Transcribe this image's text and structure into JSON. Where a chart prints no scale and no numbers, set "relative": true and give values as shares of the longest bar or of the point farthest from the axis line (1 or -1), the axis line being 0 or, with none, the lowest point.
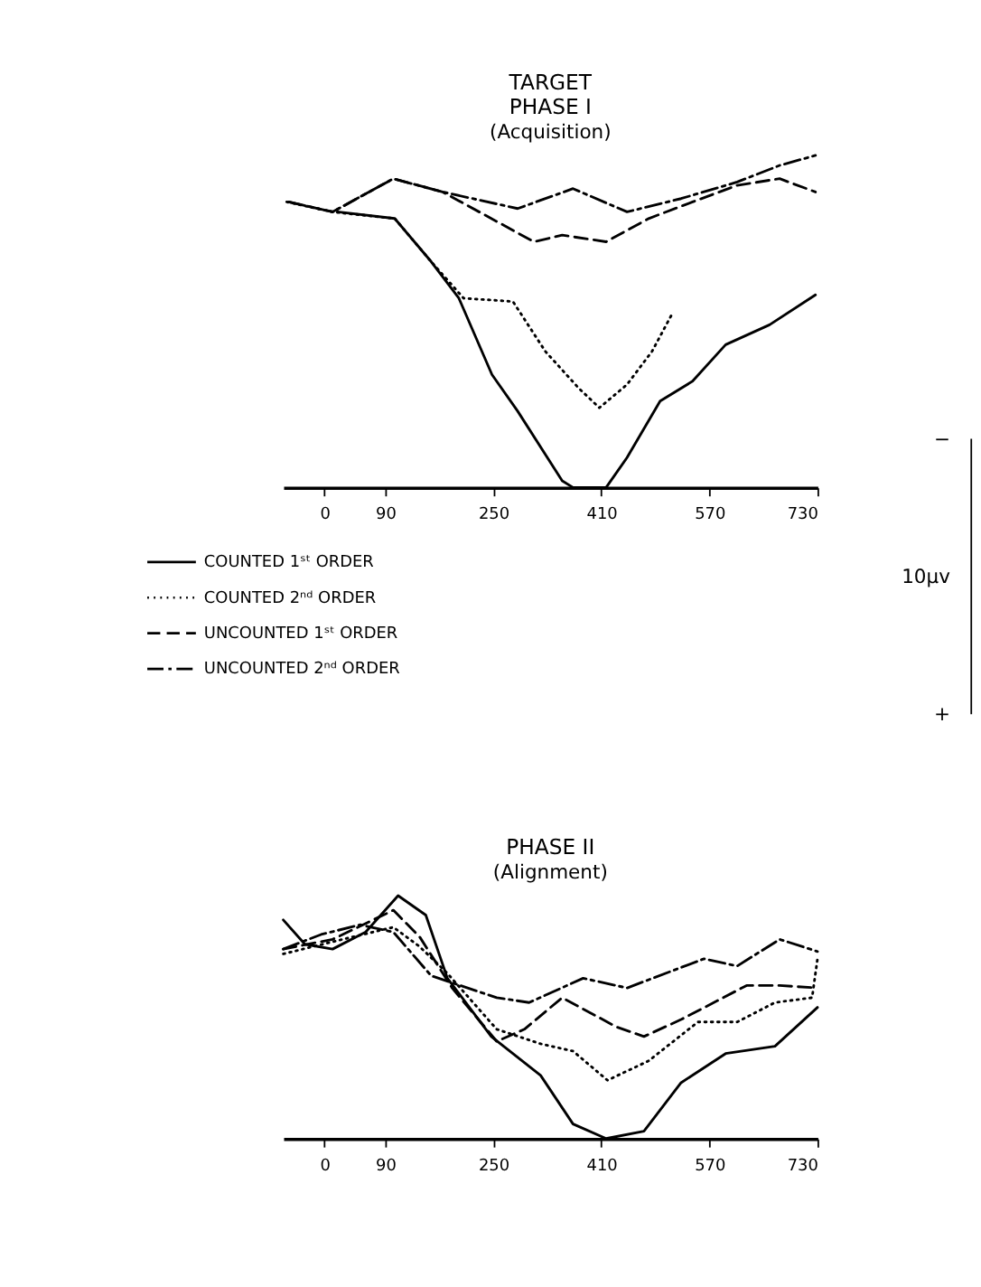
{
  "chart_data": [
    {
      "type": "line",
      "title": "TARGET\nPHASE I",
      "subtitle": "(Acquisition)",
      "relative": true,
      "legend": "bottom left",
      "grid": false,
      "xlim": [
        -61,
        730
      ],
      "xticks": [
        0,
        90,
        250,
        410,
        570,
        730
      ],
      "annotations": [
        "−",
        "10µv",
        "+"
      ],
      "series": [
        {
          "name": "COUNTED 1ˢᵗ ORDER",
          "color": "#000000",
          "line_style": "solid",
          "x": [
            19,
            104,
            158,
            199,
            248,
            286,
            352,
            368,
            417,
            448,
            497,
            545,
            594,
            659,
            727
          ],
          "values": [
            0.83,
            0.81,
            0.68,
            0.57,
            0.34,
            0.23,
            0.02,
            0,
            0,
            0.09,
            0.26,
            0.32,
            0.43,
            0.49,
            0.58
          ]
        },
        {
          "name": "COUNTED 2ⁿᵈ ORDER",
          "color": "#000000",
          "line_style": "dotted",
          "x": [
            -56,
            12,
            104,
            158,
            206,
            279,
            327,
            376,
            407,
            448,
            485,
            514
          ],
          "values": [
            0.86,
            0.83,
            0.81,
            0.68,
            0.57,
            0.56,
            0.41,
            0.3,
            0.24,
            0.31,
            0.41,
            0.52
          ]
        },
        {
          "name": "UNCOUNTED 1ˢᵗ ORDER",
          "color": "#000000",
          "line_style": "dashed",
          "x": [
            -53,
            12,
            102,
            175,
            238,
            310,
            352,
            417,
            480,
            545,
            611,
            674,
            727
          ],
          "values": [
            0.86,
            0.83,
            0.93,
            0.89,
            0.82,
            0.74,
            0.76,
            0.74,
            0.81,
            0.86,
            0.91,
            0.93,
            0.89
          ]
        },
        {
          "name": "UNCOUNTED 2ⁿᵈ ORDER",
          "color": "#000000",
          "line_style": "dashdot",
          "x": [
            -53,
            12,
            102,
            175,
            286,
            368,
            448,
            528,
            611,
            674,
            727
          ],
          "values": [
            0.86,
            0.83,
            0.93,
            0.89,
            0.84,
            0.9,
            0.83,
            0.87,
            0.92,
            0.97,
            1
          ]
        }
      ]
    },
    {
      "type": "line",
      "title": "PHASE II",
      "subtitle": "(Alignment)",
      "relative": true,
      "grid": false,
      "xlim": [
        -61,
        730
      ],
      "xticks": [
        0,
        90,
        250,
        410,
        570,
        730
      ],
      "series": [
        {
          "color": "#000000",
          "line_style": "solid",
          "x": [
            -61,
            -29,
            12,
            61,
            109,
            150,
            182,
            247,
            320,
            368,
            417,
            473,
            528,
            594,
            667,
            730
          ],
          "values": [
            0.9,
            0.8,
            0.78,
            0.85,
            1,
            0.92,
            0.66,
            0.42,
            0.26,
            0.06,
            0,
            0.03,
            0.23,
            0.35,
            0.38,
            0.54
          ]
        },
        {
          "color": "#000000",
          "line_style": "dotted",
          "x": [
            -61,
            12,
            102,
            141,
            182,
            255,
            320,
            368,
            419,
            480,
            553,
            611,
            667,
            722,
            730
          ],
          "values": [
            0.76,
            0.81,
            0.87,
            0.79,
            0.68,
            0.45,
            0.39,
            0.36,
            0.24,
            0.32,
            0.48,
            0.48,
            0.56,
            0.58,
            0.74
          ]
        },
        {
          "color": "#000000",
          "line_style": "dashed",
          "x": [
            -61,
            12,
            102,
            141,
            189,
            255,
            296,
            352,
            432,
            473,
            528,
            625,
            674,
            730
          ],
          "values": [
            0.78,
            0.82,
            0.94,
            0.83,
            0.62,
            0.4,
            0.45,
            0.58,
            0.46,
            0.42,
            0.49,
            0.63,
            0.63,
            0.62
          ]
        },
        {
          "color": "#000000",
          "line_style": "dashdot",
          "x": [
            -61,
            -5,
            53,
            102,
            158,
            255,
            303,
            383,
            448,
            562,
            611,
            674,
            730
          ],
          "values": [
            0.78,
            0.84,
            0.88,
            0.85,
            0.67,
            0.58,
            0.56,
            0.66,
            0.62,
            0.74,
            0.71,
            0.82,
            0.77
          ]
        }
      ]
    }
  ]
}
